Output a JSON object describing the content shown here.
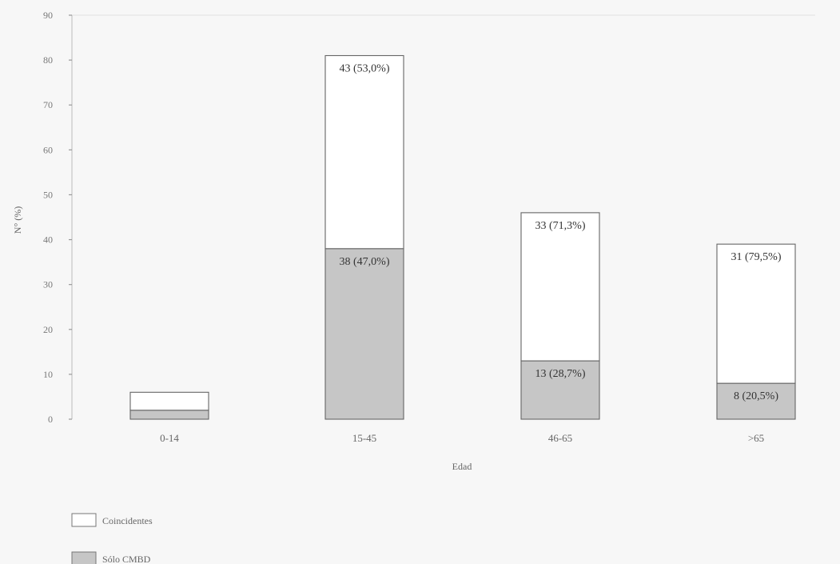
{
  "chart_data": {
    "type": "bar",
    "stacked": true,
    "title": "",
    "xlabel": "Edad",
    "ylabel": "N° (%)",
    "ylim": [
      0,
      90
    ],
    "yticks": [
      0,
      10,
      20,
      30,
      40,
      50,
      60,
      70,
      80,
      90
    ],
    "categories": [
      "0-14",
      "15-45",
      "46-65",
      ">65"
    ],
    "series": [
      {
        "name": "Sólo CMBD",
        "color": "#c6c6c6",
        "values": [
          2,
          38,
          13,
          8
        ],
        "labels": [
          "",
          "38 (47,0%)",
          "13 (28,7%)",
          "8 (20,5%)"
        ]
      },
      {
        "name": "Coincidentes",
        "color": "#ffffff",
        "values": [
          4,
          43,
          33,
          31
        ],
        "labels": [
          "",
          "43 (53,0%)",
          "33 (71,3%)",
          "31 (79,5%)"
        ]
      }
    ],
    "grid": false,
    "legend": "bottom-left"
  }
}
